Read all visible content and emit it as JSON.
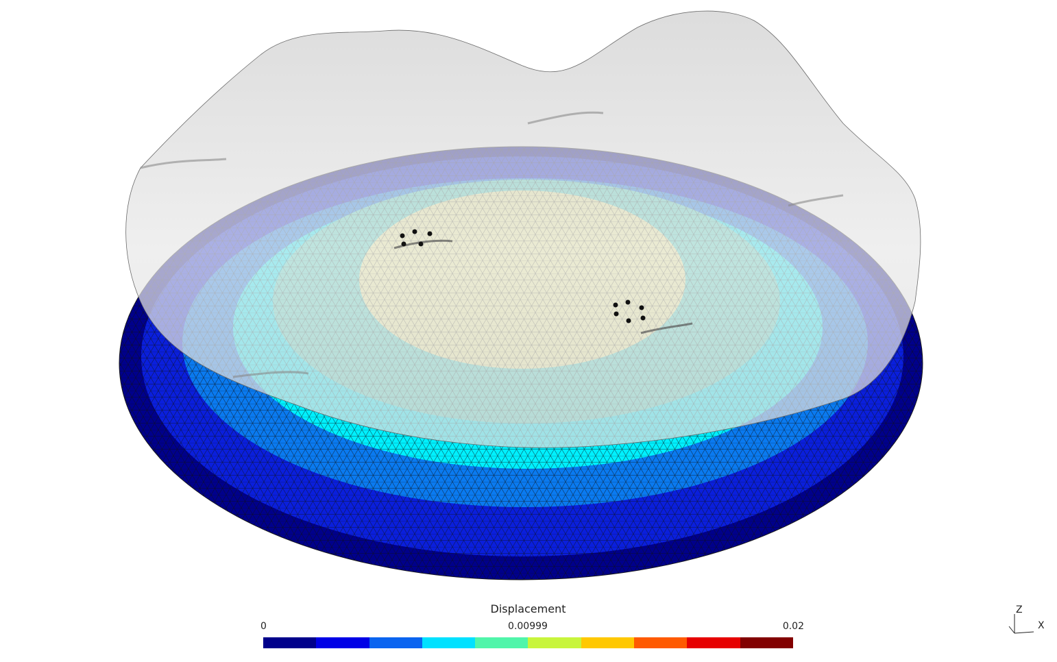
{
  "legend": {
    "title": "Displacement",
    "min_label": "0",
    "mid_label": "0.00999",
    "max_label": "0.02",
    "colors": [
      "#00008b",
      "#0000e6",
      "#0a64f0",
      "#00e1ff",
      "#50f5aa",
      "#c8f53c",
      "#ffc800",
      "#ff5a00",
      "#e60000",
      "#820000"
    ]
  },
  "axes": {
    "z_label": "Z",
    "x_label": "X"
  },
  "scene": {
    "mesh_outline_color": "#1a1a1a",
    "undeformed_surface_color": "#d8d8d8",
    "band_colors": [
      "#00008b",
      "#0a1fdc",
      "#0a7af0",
      "#00f0ff",
      "#ffff82"
    ]
  }
}
